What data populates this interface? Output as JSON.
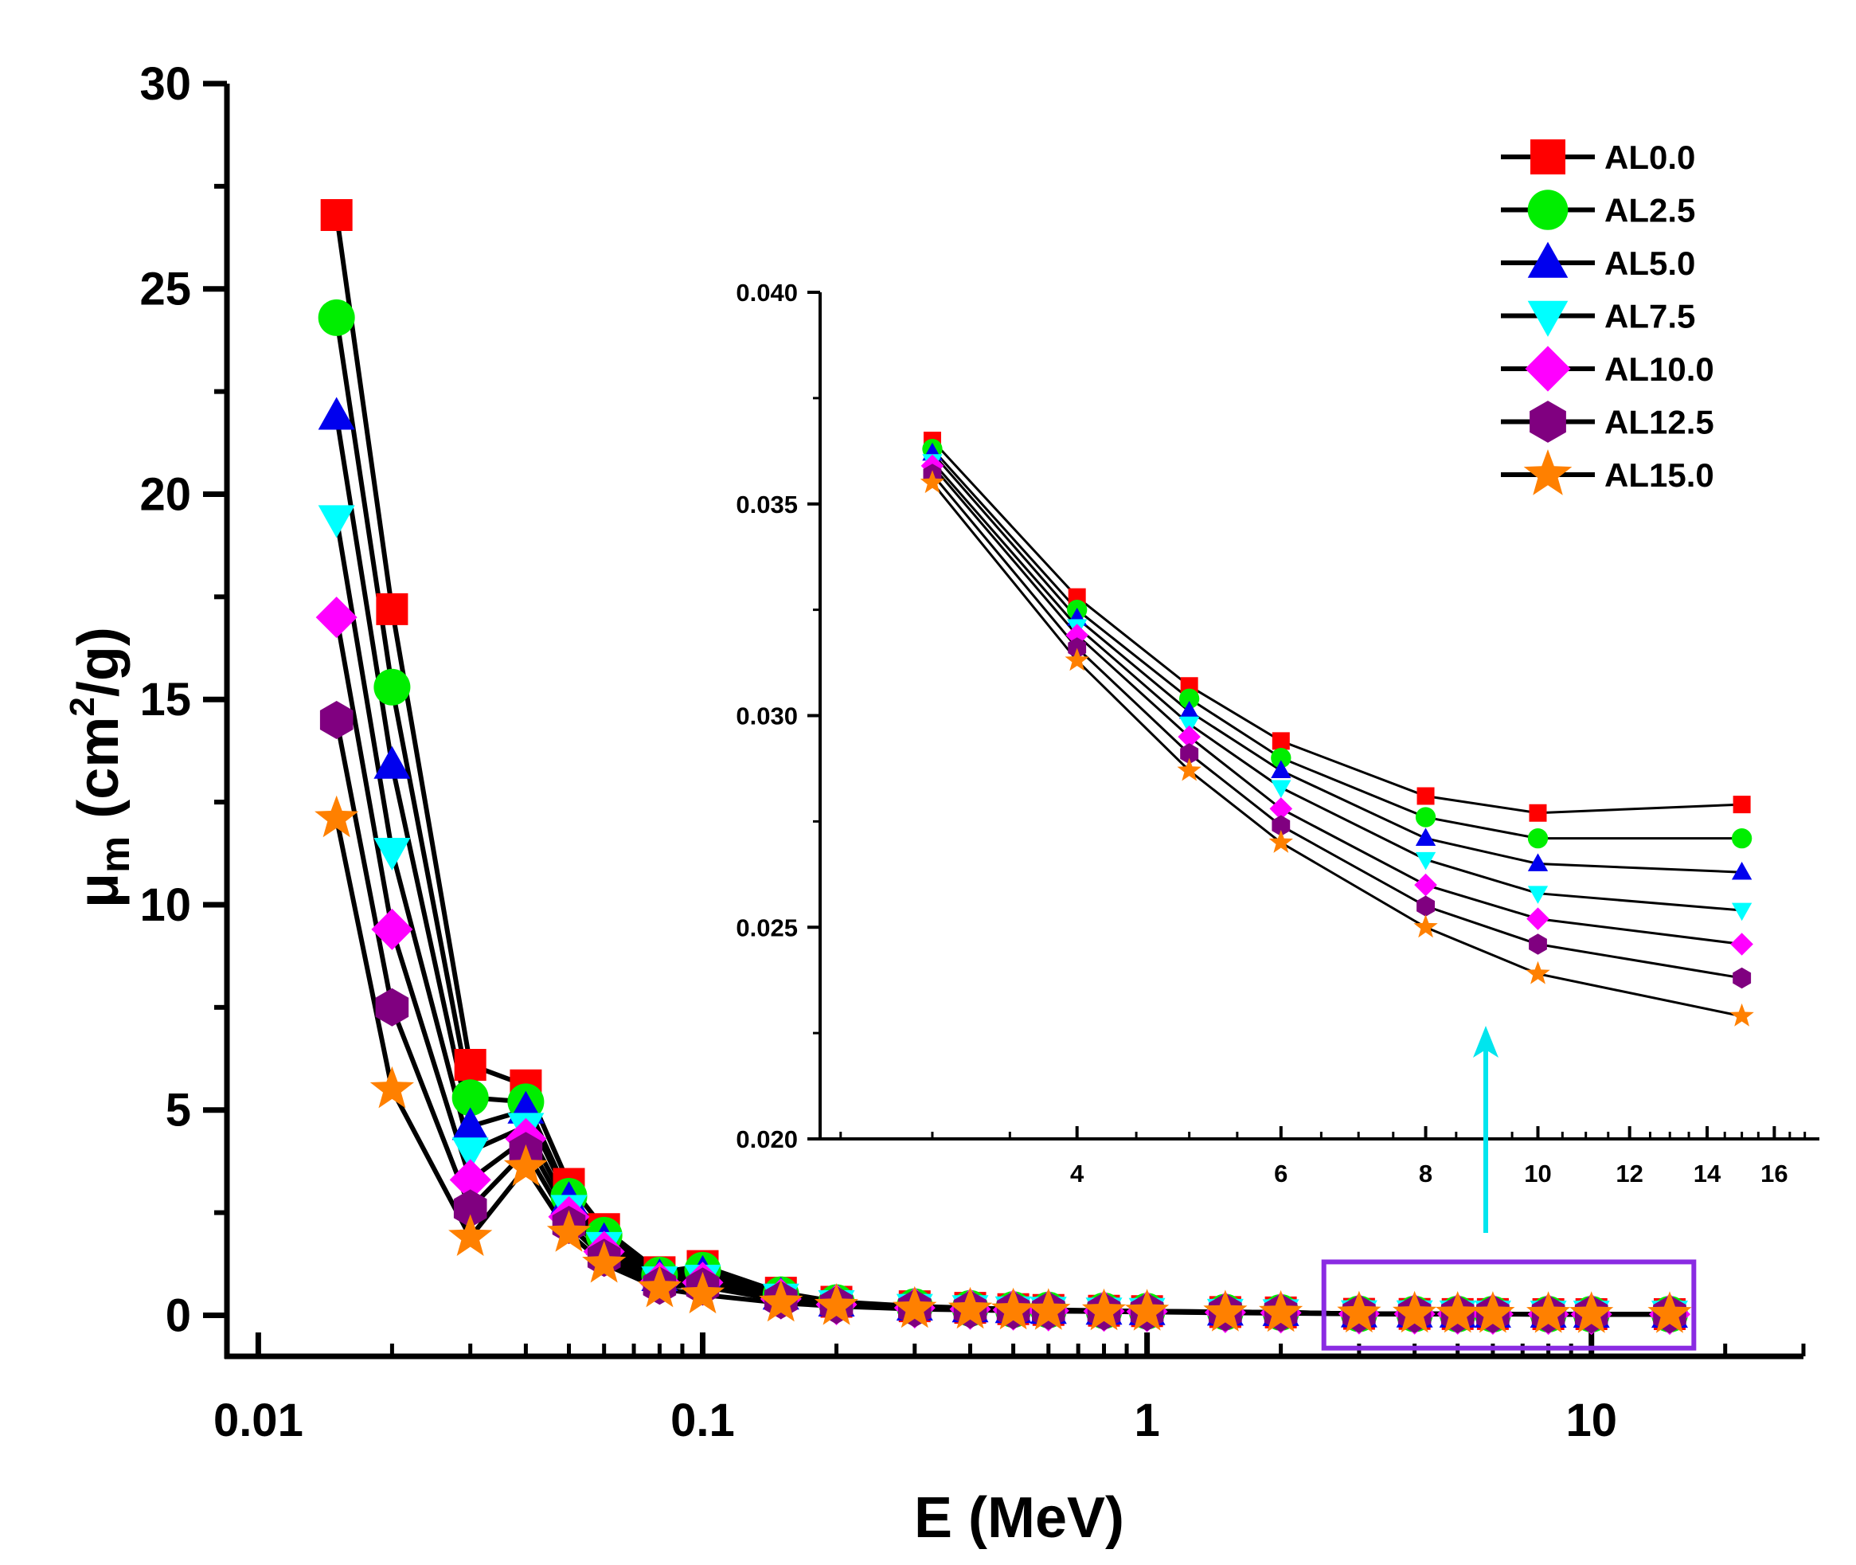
{
  "chart_data": [
    {
      "type": "line",
      "xlabel": "E (MeV)",
      "ylabel": "μm (cm2/g)",
      "ylabel_parts": {
        "mu": "μ",
        "sub": "m",
        "pre": "(cm",
        "sup": "2",
        "post": "/g)"
      },
      "xscale": "log",
      "xlim": [
        0.0085,
        30
      ],
      "ylim": [
        -1,
        30
      ],
      "xticks": [
        0.01,
        0.1,
        1,
        10
      ],
      "xtick_labels": [
        "0.01",
        "0.1",
        "1",
        "10"
      ],
      "yticks": [
        0,
        5,
        10,
        15,
        20,
        25,
        30
      ],
      "ytick_labels": [
        "0",
        "5",
        "10",
        "15",
        "20",
        "25",
        "30"
      ],
      "grid": false,
      "legend_position": "top-right",
      "x": [
        0.015,
        0.02,
        0.03,
        0.04,
        0.05,
        0.06,
        0.08,
        0.1,
        0.15,
        0.2,
        0.3,
        0.4,
        0.5,
        0.6,
        0.8,
        1,
        1.5,
        2,
        3,
        4,
        5,
        6,
        8,
        10,
        15
      ],
      "series": [
        {
          "name": "AL0.0",
          "values": [
            26.8,
            17.2,
            6.1,
            5.6,
            3.2,
            2.1,
            1.05,
            1.2,
            0.55,
            0.33,
            0.22,
            0.18,
            0.15,
            0.13,
            0.11,
            0.1,
            0.08,
            0.07,
            0.0365,
            0.0328,
            0.0307,
            0.0294,
            0.0281,
            0.0277,
            0.0279
          ]
        },
        {
          "name": "AL2.5",
          "values": [
            24.3,
            15.3,
            5.3,
            5.2,
            2.9,
            1.95,
            0.98,
            1.1,
            0.5,
            0.31,
            0.21,
            0.17,
            0.14,
            0.13,
            0.11,
            0.1,
            0.08,
            0.07,
            0.0363,
            0.0325,
            0.0304,
            0.029,
            0.0276,
            0.0271,
            0.0271
          ]
        },
        {
          "name": "AL5.0",
          "values": [
            21.9,
            13.4,
            4.6,
            5.0,
            2.8,
            1.8,
            0.92,
            1.0,
            0.47,
            0.3,
            0.2,
            0.16,
            0.14,
            0.12,
            0.1,
            0.09,
            0.08,
            0.07,
            0.0362,
            0.0323,
            0.0301,
            0.0287,
            0.0271,
            0.0265,
            0.0263
          ]
        },
        {
          "name": "AL7.5",
          "values": [
            19.4,
            11.3,
            4.0,
            4.6,
            2.6,
            1.7,
            0.86,
            0.9,
            0.44,
            0.28,
            0.19,
            0.16,
            0.13,
            0.12,
            0.1,
            0.09,
            0.07,
            0.06,
            0.036,
            0.0321,
            0.0298,
            0.0283,
            0.0266,
            0.0258,
            0.0254
          ]
        },
        {
          "name": "AL10.0",
          "values": [
            17.0,
            9.4,
            3.3,
            4.3,
            2.4,
            1.55,
            0.8,
            0.8,
            0.4,
            0.26,
            0.18,
            0.15,
            0.13,
            0.11,
            0.1,
            0.09,
            0.07,
            0.06,
            0.0359,
            0.0319,
            0.0295,
            0.0278,
            0.026,
            0.0252,
            0.0246
          ]
        },
        {
          "name": "AL12.5",
          "values": [
            14.5,
            7.5,
            2.6,
            4.0,
            2.2,
            1.4,
            0.72,
            0.7,
            0.37,
            0.25,
            0.17,
            0.14,
            0.12,
            0.11,
            0.09,
            0.08,
            0.07,
            0.06,
            0.0357,
            0.0316,
            0.0291,
            0.0274,
            0.0255,
            0.0246,
            0.0238
          ]
        },
        {
          "name": "AL15.0",
          "values": [
            12.1,
            5.5,
            1.9,
            3.6,
            2.0,
            1.25,
            0.65,
            0.5,
            0.3,
            0.22,
            0.15,
            0.13,
            0.11,
            0.1,
            0.09,
            0.08,
            0.06,
            0.05,
            0.0355,
            0.0313,
            0.0287,
            0.027,
            0.025,
            0.0239,
            0.0229
          ]
        }
      ],
      "colors": [
        "#ff0000",
        "#00ee00",
        "#0000ee",
        "#00ffff",
        "#ff00ff",
        "#800080",
        "#ff8000"
      ],
      "markers": [
        "square",
        "circle",
        "triangle-up",
        "triangle-down",
        "diamond",
        "hexagon",
        "star"
      ],
      "highlight_box": {
        "x_range": [
          2.5,
          17
        ],
        "y_range": [
          -0.8,
          1.3
        ],
        "color": "#8a2be2"
      },
      "arrow_color": "#00e5ee"
    },
    {
      "type": "line",
      "role": "inset",
      "xscale": "log",
      "xlim": [
        2.4,
        17.5
      ],
      "ylim": [
        0.02,
        0.04
      ],
      "xticks": [
        4,
        6,
        8,
        10,
        12,
        14,
        16
      ],
      "xtick_labels": [
        "4",
        "6",
        "8",
        "10",
        "12",
        "14",
        "16"
      ],
      "yticks": [
        0.02,
        0.025,
        0.03,
        0.035,
        0.04
      ],
      "ytick_labels": [
        "0.020",
        "0.025",
        "0.030",
        "0.035",
        "0.040"
      ],
      "x": [
        3,
        4,
        5,
        6,
        8,
        10,
        15
      ],
      "series": [
        {
          "name": "AL0.0",
          "values": [
            0.0365,
            0.0328,
            0.0307,
            0.0294,
            0.0281,
            0.0277,
            0.0279
          ]
        },
        {
          "name": "AL2.5",
          "values": [
            0.0363,
            0.0325,
            0.0304,
            0.029,
            0.0276,
            0.0271,
            0.0271
          ]
        },
        {
          "name": "AL5.0",
          "values": [
            0.0362,
            0.0323,
            0.0301,
            0.0287,
            0.0271,
            0.0265,
            0.0263
          ]
        },
        {
          "name": "AL7.5",
          "values": [
            0.036,
            0.0321,
            0.0298,
            0.0283,
            0.0266,
            0.0258,
            0.0254
          ]
        },
        {
          "name": "AL10.0",
          "values": [
            0.0359,
            0.0319,
            0.0295,
            0.0278,
            0.026,
            0.0252,
            0.0246
          ]
        },
        {
          "name": "AL12.5",
          "values": [
            0.0357,
            0.0316,
            0.0291,
            0.0274,
            0.0255,
            0.0246,
            0.0238
          ]
        },
        {
          "name": "AL15.0",
          "values": [
            0.0355,
            0.0313,
            0.0287,
            0.027,
            0.025,
            0.0239,
            0.0229
          ]
        }
      ]
    }
  ]
}
